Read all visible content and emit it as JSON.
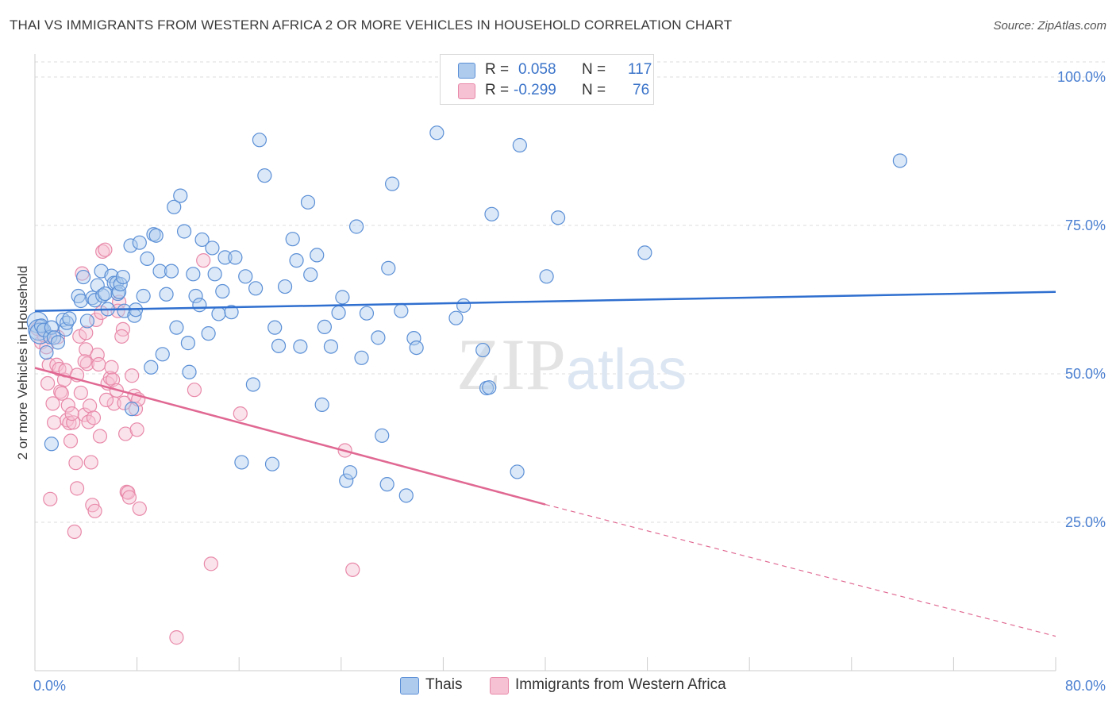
{
  "header": {
    "title": "THAI VS IMMIGRANTS FROM WESTERN AFRICA 2 OR MORE VEHICLES IN HOUSEHOLD CORRELATION CHART",
    "source": "Source: ZipAtlas.com"
  },
  "legend": {
    "rows": [
      {
        "r_label": "R =",
        "r_value": "0.058",
        "n_label": "N =",
        "n_value": "117"
      },
      {
        "r_label": "R =",
        "r_value": "-0.299",
        "n_label": "N =",
        "n_value": "76"
      }
    ]
  },
  "bottom_legend": {
    "series1": "Thais",
    "series2": "Immigrants from Western Africa"
  },
  "watermark": "ZIPatlas",
  "colors": {
    "blue_fill": "#aecbee",
    "blue_stroke": "#5b8fd6",
    "blue_line": "#2f6fcf",
    "pink_fill": "#f6c1d3",
    "pink_stroke": "#e889a9",
    "pink_line": "#e06892",
    "axis_text": "#4a7fd1",
    "grid": "#dddddd"
  },
  "chart_data": {
    "type": "scatter",
    "title": "THAI VS IMMIGRANTS FROM WESTERN AFRICA 2 OR MORE VEHICLES IN HOUSEHOLD CORRELATION CHART",
    "xlabel": "",
    "ylabel": "2 or more Vehicles in Household",
    "xlim": [
      0,
      80
    ],
    "ylim": [
      0,
      102
    ],
    "x_tick_labels": [
      "0.0%",
      "80.0%"
    ],
    "y_ticks": [
      {
        "value": 25,
        "label": "25.0%"
      },
      {
        "value": 50,
        "label": "50.0%"
      },
      {
        "value": 75,
        "label": "75.0%"
      },
      {
        "value": 100,
        "label": "100.0%"
      }
    ],
    "series": [
      {
        "name": "Thais",
        "r": 0.058,
        "n": 117,
        "trend": {
          "x0": 0,
          "y0": 60.6,
          "x1": 80,
          "y1": 63.8
        },
        "points": [
          [
            0.2,
            58.7
          ],
          [
            0.3,
            57.4
          ],
          [
            0.4,
            56.8
          ],
          [
            0.5,
            58.1
          ],
          [
            0.7,
            57.4
          ],
          [
            0.9,
            53.6
          ],
          [
            1.2,
            56.2
          ],
          [
            1.3,
            57.8
          ],
          [
            1.5,
            56.1
          ],
          [
            1.8,
            55.3
          ],
          [
            2.2,
            59.1
          ],
          [
            2.4,
            57.5
          ],
          [
            2.5,
            58.6
          ],
          [
            1.3,
            38.2
          ],
          [
            2.7,
            59.3
          ],
          [
            3.4,
            63.1
          ],
          [
            3.6,
            62.3
          ],
          [
            3.8,
            66.3
          ],
          [
            4.1,
            58.9
          ],
          [
            4.5,
            62.8
          ],
          [
            4.7,
            62.4
          ],
          [
            4.9,
            64.9
          ],
          [
            5.2,
            67.3
          ],
          [
            5.3,
            63.2
          ],
          [
            5.5,
            63.5
          ],
          [
            5.7,
            60.9
          ],
          [
            6.0,
            66.5
          ],
          [
            6.2,
            65.3
          ],
          [
            6.4,
            65.3
          ],
          [
            6.5,
            63.5
          ],
          [
            6.6,
            63.8
          ],
          [
            6.7,
            65.1
          ],
          [
            6.9,
            66.3
          ],
          [
            7.0,
            60.6
          ],
          [
            7.5,
            71.6
          ],
          [
            7.6,
            44.1
          ],
          [
            7.8,
            59.8
          ],
          [
            7.9,
            60.8
          ],
          [
            8.2,
            72.1
          ],
          [
            8.5,
            63.1
          ],
          [
            8.8,
            69.4
          ],
          [
            9.1,
            51.1
          ],
          [
            9.3,
            73.5
          ],
          [
            9.5,
            73.3
          ],
          [
            9.8,
            67.3
          ],
          [
            10.0,
            53.3
          ],
          [
            10.3,
            63.4
          ],
          [
            10.7,
            67.3
          ],
          [
            10.9,
            78.1
          ],
          [
            11.1,
            57.8
          ],
          [
            11.4,
            80.0
          ],
          [
            11.7,
            74.0
          ],
          [
            12.0,
            55.2
          ],
          [
            12.1,
            50.3
          ],
          [
            12.4,
            66.8
          ],
          [
            12.6,
            63.1
          ],
          [
            12.9,
            61.6
          ],
          [
            13.1,
            72.6
          ],
          [
            13.6,
            56.8
          ],
          [
            13.9,
            71.2
          ],
          [
            14.1,
            66.8
          ],
          [
            14.4,
            60.1
          ],
          [
            14.7,
            63.9
          ],
          [
            14.9,
            69.6
          ],
          [
            15.4,
            60.4
          ],
          [
            15.7,
            69.6
          ],
          [
            16.2,
            35.1
          ],
          [
            16.5,
            66.4
          ],
          [
            17.1,
            48.2
          ],
          [
            17.3,
            64.4
          ],
          [
            17.6,
            89.4
          ],
          [
            18.0,
            83.4
          ],
          [
            18.8,
            57.8
          ],
          [
            19.1,
            54.7
          ],
          [
            19.6,
            64.7
          ],
          [
            20.2,
            72.7
          ],
          [
            20.5,
            69.1
          ],
          [
            20.8,
            54.6
          ],
          [
            21.4,
            78.9
          ],
          [
            21.6,
            66.7
          ],
          [
            22.1,
            70.0
          ],
          [
            22.5,
            44.8
          ],
          [
            22.7,
            57.9
          ],
          [
            23.2,
            54.6
          ],
          [
            23.8,
            60.3
          ],
          [
            24.1,
            62.9
          ],
          [
            24.4,
            32.0
          ],
          [
            24.7,
            33.4
          ],
          [
            25.2,
            74.8
          ],
          [
            25.6,
            52.7
          ],
          [
            26.0,
            60.2
          ],
          [
            26.9,
            56.1
          ],
          [
            27.2,
            39.6
          ],
          [
            27.6,
            31.4
          ],
          [
            27.7,
            67.8
          ],
          [
            28.0,
            82.0
          ],
          [
            28.7,
            60.6
          ],
          [
            29.1,
            29.5
          ],
          [
            29.7,
            56.0
          ],
          [
            29.9,
            54.4
          ],
          [
            18.6,
            34.8
          ],
          [
            31.5,
            90.6
          ],
          [
            33.0,
            59.4
          ],
          [
            33.6,
            61.5
          ],
          [
            35.1,
            54.0
          ],
          [
            35.4,
            47.6
          ],
          [
            35.6,
            47.7
          ],
          [
            35.8,
            76.9
          ],
          [
            37.8,
            33.5
          ],
          [
            38.0,
            88.5
          ],
          [
            40.1,
            66.4
          ],
          [
            41.0,
            76.3
          ],
          [
            47.8,
            70.4
          ],
          [
            67.8,
            85.9
          ]
        ]
      },
      {
        "name": "Immigrants from Western Africa",
        "r": -0.299,
        "n": 76,
        "trend": {
          "x0": 0,
          "y0": 51.0,
          "x1": 40,
          "y1": 28.0
        },
        "trend_extension": {
          "x0": 40,
          "y0": 28.0,
          "x1": 80,
          "y1": 5.8
        },
        "points": [
          [
            0.2,
            57.6
          ],
          [
            0.5,
            55.3
          ],
          [
            0.7,
            56.5
          ],
          [
            0.9,
            54.5
          ],
          [
            1.0,
            48.4
          ],
          [
            1.1,
            51.5
          ],
          [
            1.2,
            28.9
          ],
          [
            1.4,
            45.0
          ],
          [
            1.5,
            41.8
          ],
          [
            1.7,
            51.5
          ],
          [
            1.9,
            50.8
          ],
          [
            2.0,
            47.0
          ],
          [
            2.1,
            46.7
          ],
          [
            2.3,
            49.0
          ],
          [
            2.4,
            50.6
          ],
          [
            2.5,
            42.2
          ],
          [
            2.6,
            44.7
          ],
          [
            2.7,
            41.7
          ],
          [
            2.8,
            38.7
          ],
          [
            3.0,
            41.8
          ],
          [
            3.1,
            23.4
          ],
          [
            3.2,
            35.0
          ],
          [
            3.3,
            30.7
          ],
          [
            3.5,
            56.3
          ],
          [
            3.6,
            46.8
          ],
          [
            3.7,
            66.9
          ],
          [
            3.9,
            43.1
          ],
          [
            4.0,
            54.1
          ],
          [
            4.1,
            51.7
          ],
          [
            4.2,
            41.9
          ],
          [
            4.3,
            44.6
          ],
          [
            4.4,
            35.1
          ],
          [
            4.5,
            27.9
          ],
          [
            4.6,
            42.6
          ],
          [
            4.7,
            26.9
          ],
          [
            4.8,
            59.1
          ],
          [
            4.9,
            53.2
          ],
          [
            5.0,
            51.6
          ],
          [
            5.1,
            39.5
          ],
          [
            5.2,
            60.3
          ],
          [
            5.3,
            70.6
          ],
          [
            5.5,
            70.9
          ],
          [
            5.7,
            48.4
          ],
          [
            5.9,
            49.3
          ],
          [
            6.0,
            51.1
          ],
          [
            6.1,
            49.0
          ],
          [
            6.2,
            45.0
          ],
          [
            6.4,
            47.2
          ],
          [
            6.6,
            62.1
          ],
          [
            6.9,
            57.5
          ],
          [
            7.1,
            39.9
          ],
          [
            7.2,
            30.1
          ],
          [
            7.3,
            30.0
          ],
          [
            7.4,
            29.2
          ],
          [
            7.6,
            49.7
          ],
          [
            7.8,
            46.3
          ],
          [
            7.9,
            44.1
          ],
          [
            8.0,
            40.6
          ],
          [
            8.2,
            27.3
          ],
          [
            11.1,
            5.6
          ],
          [
            12.5,
            47.3
          ],
          [
            13.2,
            69.1
          ],
          [
            13.8,
            18.0
          ],
          [
            16.1,
            43.3
          ],
          [
            24.3,
            37.1
          ],
          [
            24.9,
            17.0
          ],
          [
            4.0,
            56.9
          ],
          [
            6.8,
            56.3
          ],
          [
            5.6,
            45.6
          ],
          [
            3.3,
            49.8
          ],
          [
            2.9,
            43.3
          ],
          [
            6.5,
            60.6
          ],
          [
            7.0,
            45.1
          ],
          [
            8.1,
            45.7
          ],
          [
            3.9,
            52.1
          ],
          [
            1.8,
            56.2
          ]
        ]
      }
    ]
  }
}
